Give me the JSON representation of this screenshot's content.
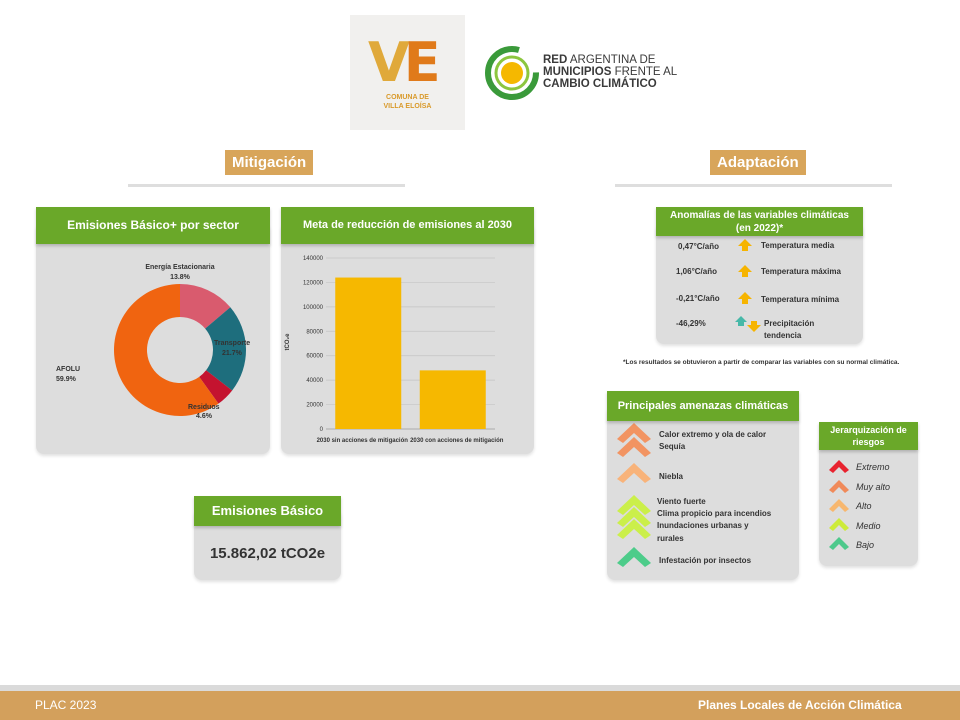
{
  "logos": {
    "ve_letters": "VE",
    "ve_subtitle_1": "COMUNA DE",
    "ve_subtitle_2": "VILLA ELOÍSA",
    "red_line1_bold": "RED",
    "red_line1_rest": " ARGENTINA DE",
    "red_line2_bold": "MUNICIPIOS",
    "red_line2_rest": " FRENTE AL",
    "red_line3": "CAMBIO CLIMÁTICO"
  },
  "mitigacion": {
    "label": "Mitigación",
    "emisiones_sector": {
      "title": "Emisiones Básico+ por sector",
      "labels": [
        {
          "name": "Energía Estacionaria",
          "pct": "13.8%"
        },
        {
          "name": "Transporte",
          "pct": "21.7%"
        },
        {
          "name": "Residuos",
          "pct": "4.6%"
        },
        {
          "name": "AFOLU",
          "pct": "59.9%"
        }
      ]
    },
    "meta": {
      "title": "Meta de reducción de emisiones al 2030"
    },
    "emisiones_basico": {
      "title": "Emisiones Básico",
      "value": "15.862,02 tCO2e"
    }
  },
  "chart_data": [
    {
      "type": "pie",
      "title": "Emisiones Básico+ por sector",
      "categories": [
        "Energía Estacionaria",
        "Transporte",
        "Residuos",
        "AFOLU"
      ],
      "values": [
        13.8,
        21.7,
        4.6,
        59.9
      ],
      "colors": [
        "#d95b6e",
        "#1e6e7d",
        "#c4132f",
        "#f06410"
      ]
    },
    {
      "type": "bar",
      "title": "Meta de reducción de emisiones al 2030",
      "categories": [
        "2030 sin acciones de mitigación",
        "2030 con acciones de mitigación"
      ],
      "values": [
        124000,
        48000
      ],
      "ylabel": "tCO₂e",
      "ylim": [
        0,
        140000
      ],
      "yticks": [
        "0",
        "20000",
        "40000",
        "60000",
        "80000",
        "100000",
        "120000",
        "140000"
      ],
      "grid": true,
      "color": "#f6b800"
    }
  ],
  "adaptacion": {
    "label": "Adaptación",
    "anomalias": {
      "title_1": "Anomalías de las variables climáticas",
      "title_2": "(en 2022)*",
      "rows": [
        {
          "value": "0,47°C/año",
          "label": "Temperatura media",
          "icon": "arrow-up-icon"
        },
        {
          "value": "1,06°C/año",
          "label": "Temperatura máxima",
          "icon": "arrow-up-icon"
        },
        {
          "value": "-0,21°C/año",
          "label": "Temperatura mínima",
          "icon": "arrow-up-icon"
        },
        {
          "value": "-46,29%",
          "label_1": "Precipitación",
          "label_2": "tendencia",
          "icon": "arrows-up-down-icon"
        }
      ]
    },
    "note": "*Los resultados se obtuvieron a partir de comparar las variables con su normal climática.",
    "amenazas": {
      "title": "Principales amenazas climáticas",
      "items": [
        {
          "text": "Calor extremo y ola de calor",
          "color": "#f29462"
        },
        {
          "text": "Sequía",
          "color": "#f29462"
        },
        {
          "text": "Niebla",
          "color": "#f8b37a"
        },
        {
          "text": "Viento fuerte",
          "color": "#cbef4a"
        },
        {
          "text": "Clima propicio para incendios",
          "color": "#cbef4a"
        },
        {
          "text": "Inundaciones urbanas y",
          "color": "#cbef4a"
        },
        {
          "text": "rurales",
          "color": "#cbef4a"
        },
        {
          "text": "Infestación por insectos",
          "color": "#4dcc8a"
        }
      ]
    },
    "jerarquia": {
      "title_1": "Jerarquización de",
      "title_2": "riesgos",
      "levels": [
        {
          "label": "Extremo",
          "color": "#e8232f"
        },
        {
          "label": "Muy alto",
          "color": "#f08a5a"
        },
        {
          "label": "Alto",
          "color": "#f7b76f"
        },
        {
          "label": "Medio",
          "color": "#cdeb3a"
        },
        {
          "label": "Bajo",
          "color": "#4ec98c"
        }
      ]
    }
  },
  "footer": {
    "left": "PLAC  2023",
    "right": "Planes Locales de Acción Climática"
  },
  "colors": {
    "gold": "#d8a55a",
    "green": "#6aa829",
    "card": "#dddddd"
  }
}
